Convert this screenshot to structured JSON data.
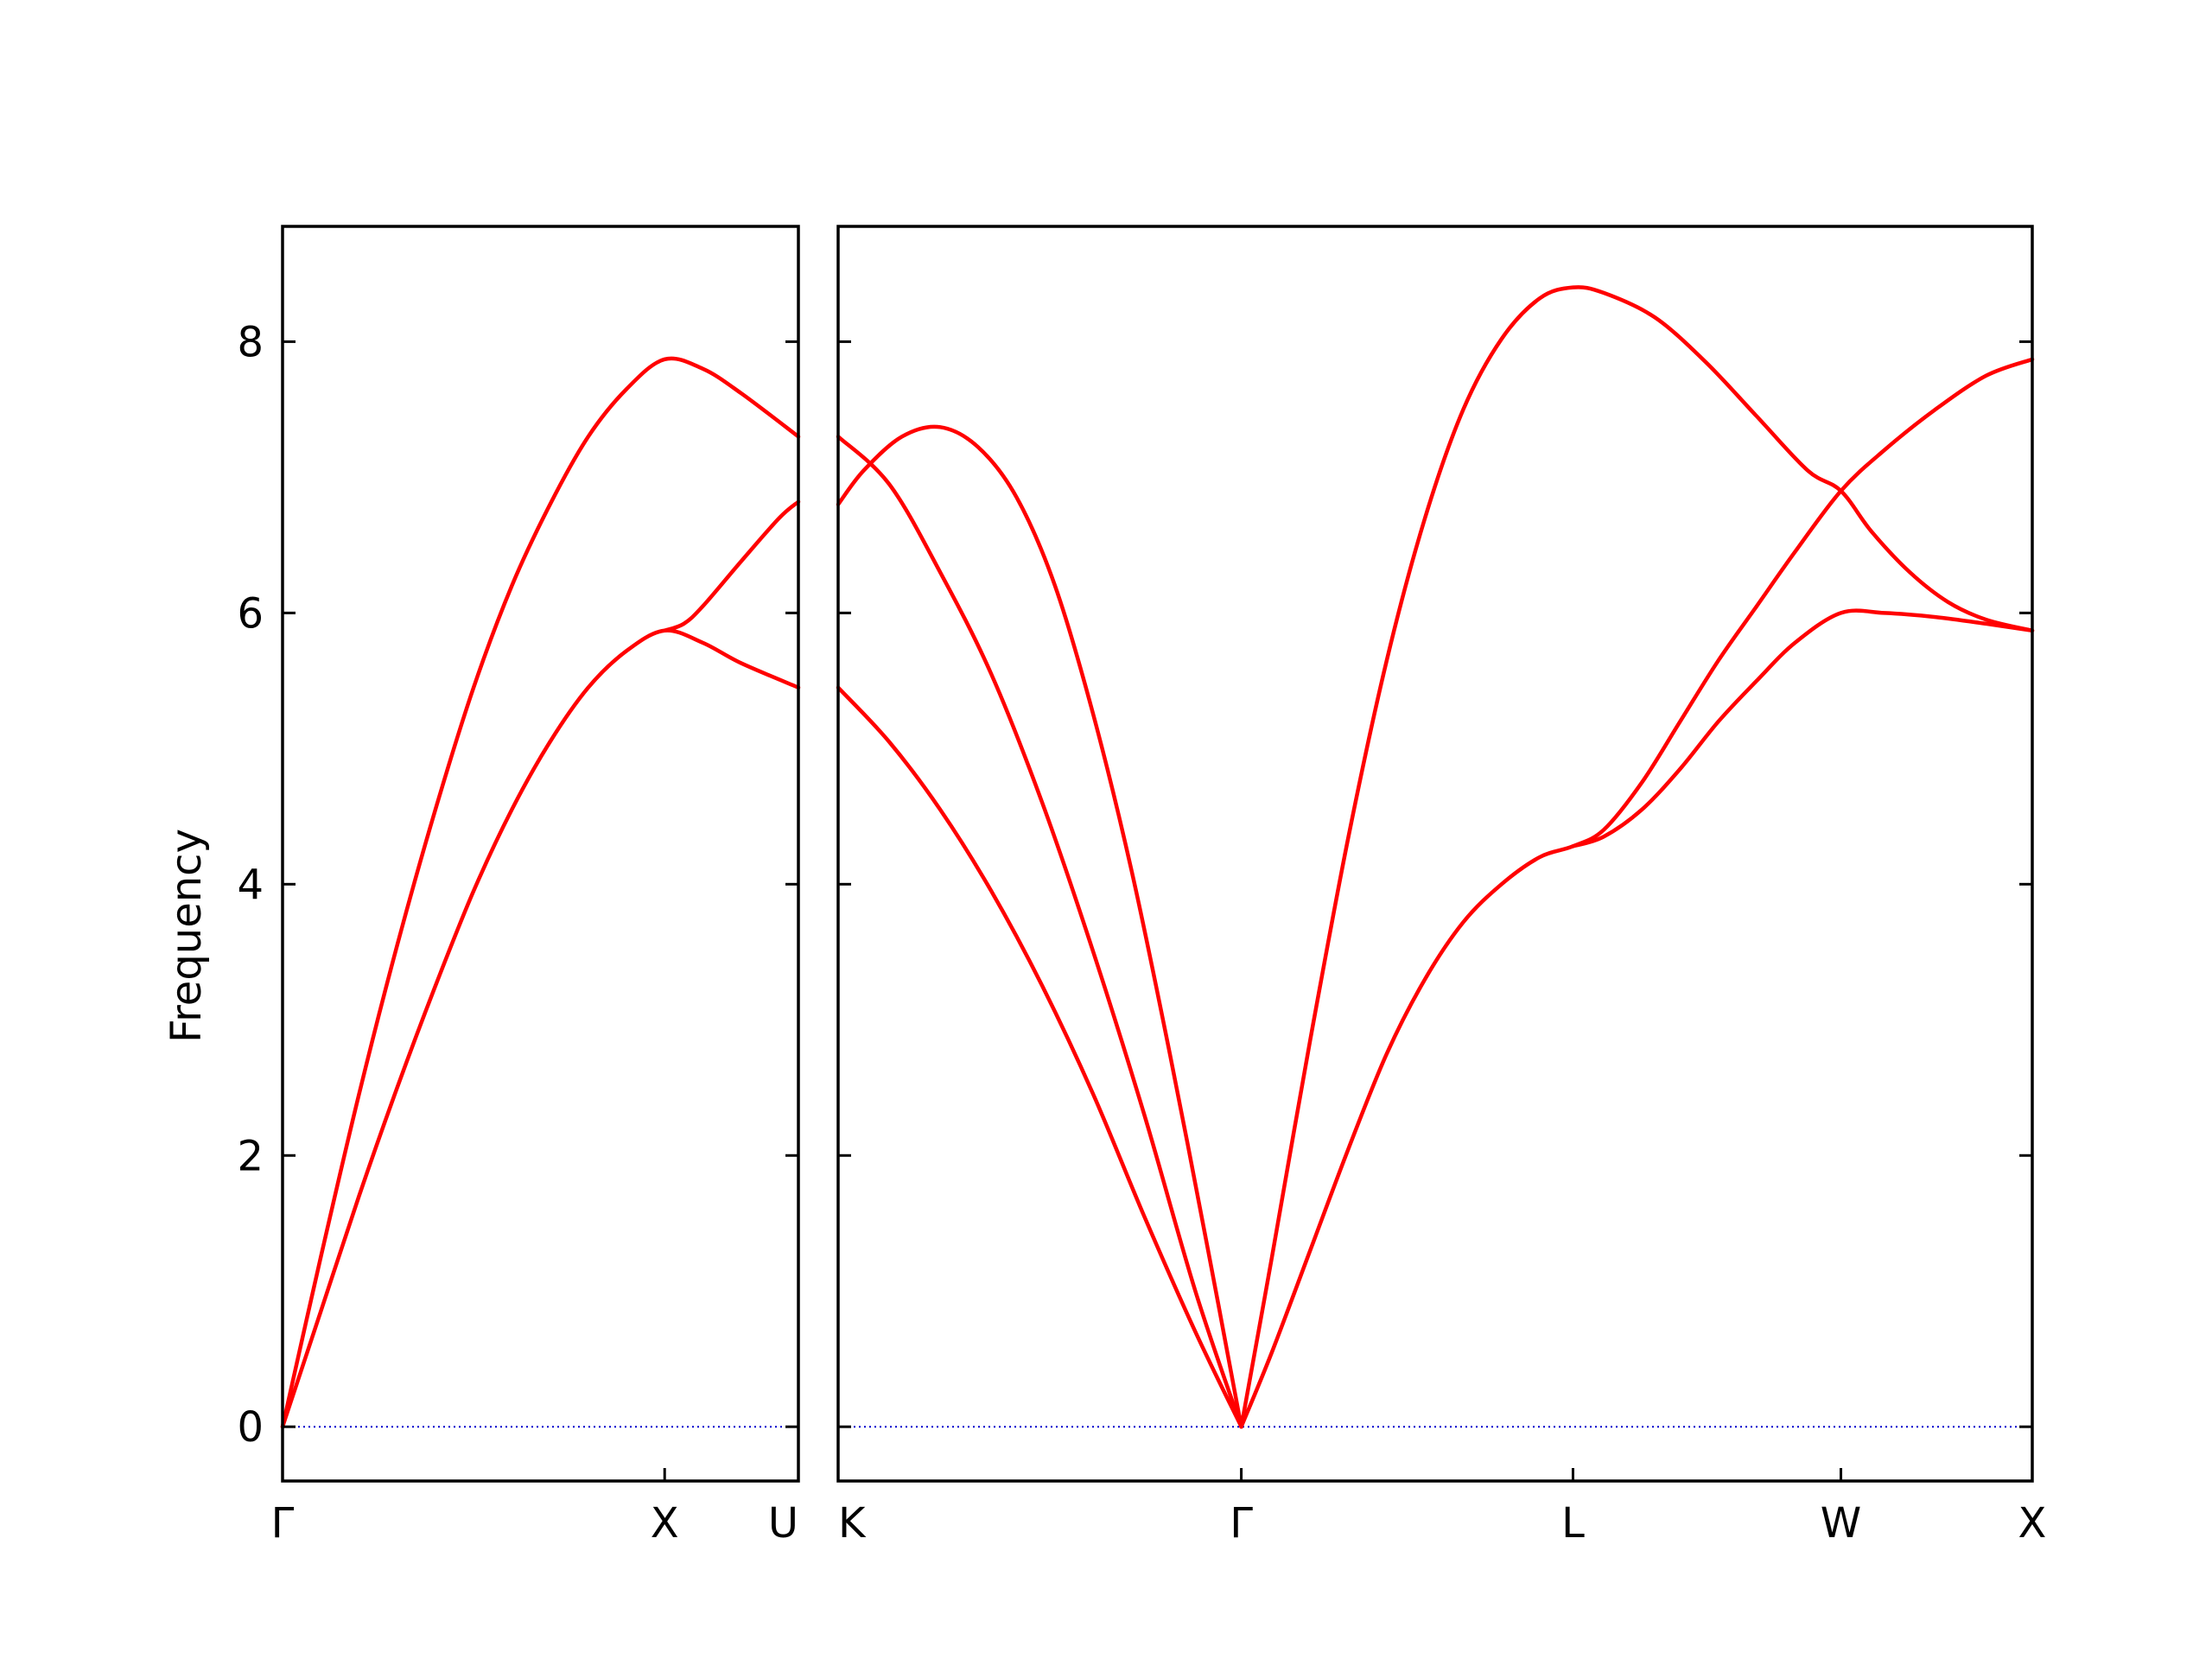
{
  "chart_data": {
    "type": "line",
    "ylabel": "Frequency",
    "ylim": [
      -0.4,
      8.85
    ],
    "yticks": [
      0,
      2,
      4,
      6,
      8
    ],
    "colors": {
      "band": "#ff0000",
      "zero_line": "#0000cc",
      "axes": "#000000"
    },
    "zero_line": {
      "y": 0,
      "style": "dotted"
    },
    "panels": [
      {
        "name": "Γ-X-U",
        "xlim": [
          0,
          1.35
        ],
        "ticks": [
          {
            "x": 0,
            "label": "Γ"
          },
          {
            "x": 1,
            "label": "X"
          },
          {
            "x": 1.35,
            "label": "U"
          }
        ],
        "series": [
          {
            "points": [
              [
                0,
                0
              ],
              [
                0.1,
                1.25
              ],
              [
                0.2,
                2.45
              ],
              [
                0.3,
                3.55
              ],
              [
                0.4,
                4.55
              ],
              [
                0.5,
                5.45
              ],
              [
                0.6,
                6.2
              ],
              [
                0.7,
                6.8
              ],
              [
                0.8,
                7.3
              ],
              [
                0.9,
                7.65
              ],
              [
                1.0,
                7.87
              ],
              [
                1.1,
                7.8
              ],
              [
                1.2,
                7.62
              ],
              [
                1.35,
                7.3
              ]
            ]
          },
          {
            "points": [
              [
                0,
                0
              ],
              [
                0.1,
                0.85
              ],
              [
                0.2,
                1.7
              ],
              [
                0.3,
                2.5
              ],
              [
                0.4,
                3.25
              ],
              [
                0.5,
                3.95
              ],
              [
                0.6,
                4.55
              ],
              [
                0.7,
                5.05
              ],
              [
                0.8,
                5.45
              ],
              [
                0.9,
                5.72
              ],
              [
                1.0,
                5.87
              ],
              [
                1.1,
                5.78
              ],
              [
                1.2,
                5.63
              ],
              [
                1.35,
                5.45
              ]
            ]
          },
          {
            "points": [
              [
                1.0,
                5.87
              ],
              [
                1.05,
                5.92
              ],
              [
                1.1,
                6.05
              ],
              [
                1.2,
                6.38
              ],
              [
                1.3,
                6.7
              ],
              [
                1.35,
                6.82
              ]
            ]
          }
        ]
      },
      {
        "name": "K-Γ-L-W-X",
        "xlim": [
          0,
          4.68
        ],
        "ticks": [
          {
            "x": 0,
            "label": "K"
          },
          {
            "x": 1.58,
            "label": "Γ"
          },
          {
            "x": 2.88,
            "label": "L"
          },
          {
            "x": 3.93,
            "label": "W"
          },
          {
            "x": 4.68,
            "label": "X"
          }
        ],
        "series": [
          {
            "points": [
              [
                0,
                6.8
              ],
              [
                0.1,
                7.05
              ],
              [
                0.25,
                7.3
              ],
              [
                0.4,
                7.37
              ],
              [
                0.55,
                7.22
              ],
              [
                0.7,
                6.85
              ],
              [
                0.85,
                6.2
              ],
              [
                1.0,
                5.25
              ],
              [
                1.15,
                4.1
              ],
              [
                1.3,
                2.75
              ],
              [
                1.45,
                1.3
              ],
              [
                1.58,
                0
              ]
            ]
          },
          {
            "points": [
              [
                0,
                7.3
              ],
              [
                0.2,
                6.95
              ],
              [
                0.4,
                6.3
              ],
              [
                0.6,
                5.55
              ],
              [
                0.8,
                4.6
              ],
              [
                1.0,
                3.5
              ],
              [
                1.2,
                2.3
              ],
              [
                1.4,
                1.0
              ],
              [
                1.58,
                0
              ]
            ]
          },
          {
            "points": [
              [
                0,
                5.45
              ],
              [
                0.2,
                5.05
              ],
              [
                0.4,
                4.55
              ],
              [
                0.6,
                3.95
              ],
              [
                0.8,
                3.25
              ],
              [
                1.0,
                2.45
              ],
              [
                1.2,
                1.55
              ],
              [
                1.4,
                0.7
              ],
              [
                1.58,
                0
              ]
            ]
          },
          {
            "points": [
              [
                1.58,
                0
              ],
              [
                1.7,
                1.25
              ],
              [
                1.85,
                2.85
              ],
              [
                2.0,
                4.35
              ],
              [
                2.15,
                5.65
              ],
              [
                2.3,
                6.7
              ],
              [
                2.45,
                7.5
              ],
              [
                2.6,
                8.02
              ],
              [
                2.75,
                8.32
              ],
              [
                2.88,
                8.4
              ],
              [
                3.0,
                8.36
              ],
              [
                3.2,
                8.18
              ],
              [
                3.4,
                7.85
              ],
              [
                3.6,
                7.45
              ],
              [
                3.8,
                7.05
              ],
              [
                3.93,
                6.9
              ],
              [
                4.05,
                6.6
              ],
              [
                4.2,
                6.3
              ],
              [
                4.35,
                6.08
              ],
              [
                4.5,
                5.95
              ],
              [
                4.68,
                5.87
              ]
            ]
          },
          {
            "points": [
              [
                1.58,
                0
              ],
              [
                1.7,
                0.55
              ],
              [
                1.85,
                1.3
              ],
              [
                2.0,
                2.05
              ],
              [
                2.15,
                2.75
              ],
              [
                2.3,
                3.3
              ],
              [
                2.45,
                3.72
              ],
              [
                2.6,
                4.0
              ],
              [
                2.75,
                4.2
              ],
              [
                2.88,
                4.28
              ],
              [
                3.0,
                4.4
              ],
              [
                3.15,
                4.75
              ],
              [
                3.3,
                5.2
              ],
              [
                3.45,
                5.65
              ],
              [
                3.6,
                6.05
              ],
              [
                3.75,
                6.45
              ],
              [
                3.93,
                6.9
              ],
              [
                4.1,
                7.2
              ],
              [
                4.3,
                7.5
              ],
              [
                4.5,
                7.75
              ],
              [
                4.68,
                7.87
              ]
            ]
          },
          {
            "points": [
              [
                2.88,
                4.28
              ],
              [
                3.0,
                4.35
              ],
              [
                3.15,
                4.55
              ],
              [
                3.3,
                4.85
              ],
              [
                3.45,
                5.2
              ],
              [
                3.6,
                5.5
              ],
              [
                3.75,
                5.78
              ],
              [
                3.93,
                6.0
              ],
              [
                4.1,
                6.0
              ],
              [
                4.3,
                5.97
              ],
              [
                4.5,
                5.92
              ],
              [
                4.68,
                5.87
              ]
            ]
          }
        ]
      }
    ]
  }
}
